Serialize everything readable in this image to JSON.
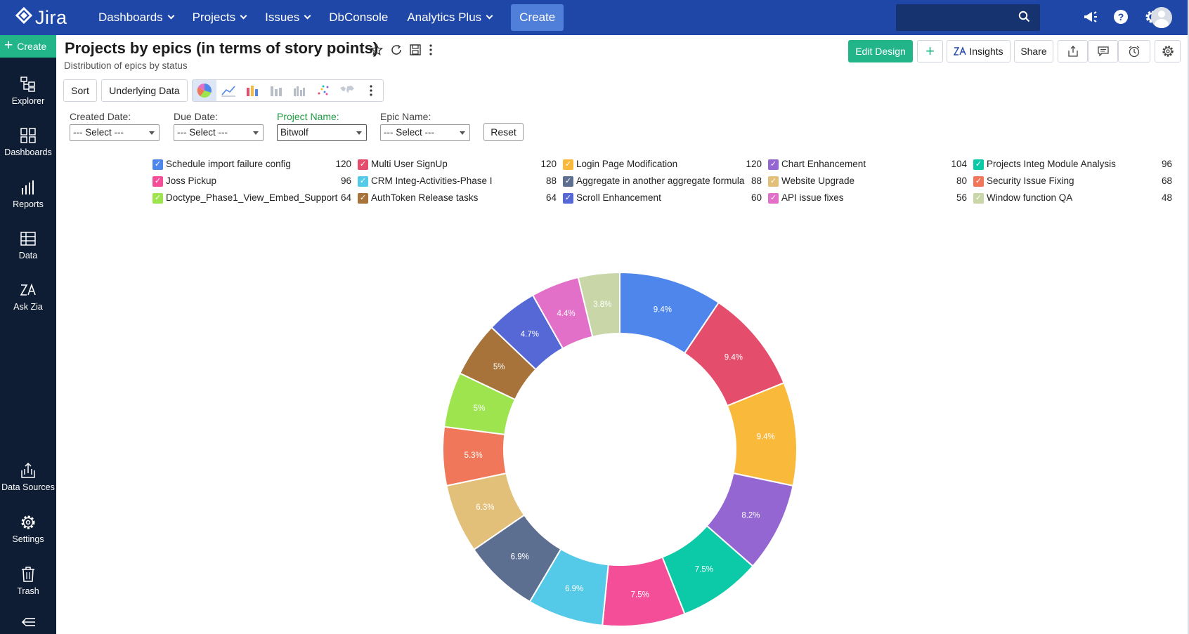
{
  "topbar": {
    "logo": "Jira",
    "nav": [
      {
        "label": "Dashboards",
        "dropdown": true
      },
      {
        "label": "Projects",
        "dropdown": true
      },
      {
        "label": "Issues",
        "dropdown": true
      },
      {
        "label": "DbConsole",
        "dropdown": false
      },
      {
        "label": "Analytics Plus",
        "dropdown": true
      }
    ],
    "create": "Create",
    "icons": [
      "search-icon",
      "megaphone-icon",
      "help-icon",
      "gear-icon",
      "avatar"
    ]
  },
  "sidebar": {
    "create": "Create",
    "items": [
      {
        "label": "Explorer",
        "icon": "explorer-icon"
      },
      {
        "label": "Dashboards",
        "icon": "dashboards-icon"
      },
      {
        "label": "Reports",
        "icon": "reports-icon"
      },
      {
        "label": "Data",
        "icon": "data-icon"
      },
      {
        "label": "Ask Zia",
        "icon": "zia-icon"
      },
      {
        "label": "Data Sources",
        "icon": "data-sources-icon"
      },
      {
        "label": "Settings",
        "icon": "settings-icon"
      },
      {
        "label": "Trash",
        "icon": "trash-icon"
      }
    ]
  },
  "header": {
    "title": "Projects by epics (in terms of story points)",
    "subtitle": "Distribution of epics by status",
    "edit_design": "Edit Design",
    "insights": "Insights",
    "share": "Share"
  },
  "toolbar": {
    "sort": "Sort",
    "underlying_data": "Underlying Data"
  },
  "filters": {
    "created_date": {
      "label": "Created Date:",
      "value": "--- Select ---"
    },
    "due_date": {
      "label": "Due Date:",
      "value": "--- Select ---"
    },
    "project_name": {
      "label": "Project Name:",
      "value": "Bitwolf"
    },
    "epic_name": {
      "label": "Epic Name:",
      "value": "--- Select ---"
    },
    "reset": "Reset"
  },
  "colors": {
    "accent_green": "#22b58a",
    "topbar_blue": "#1e47a8",
    "sidebar_dark": "#0e1d33",
    "project_label_green": "#1d9a40"
  },
  "chart_data": {
    "type": "pie",
    "subtype": "donut",
    "legend_position": "top",
    "series": [
      {
        "name": "Schedule import failure config",
        "value": 120,
        "label": "9.4%",
        "color": "#4e86ec"
      },
      {
        "name": "Multi User SignUp",
        "value": 120,
        "label": "9.4%",
        "color": "#e44d6c"
      },
      {
        "name": "Login Page Modification",
        "value": 120,
        "label": "9.4%",
        "color": "#f9b93b"
      },
      {
        "name": "Chart Enhancement",
        "value": 104,
        "label": "8.2%",
        "color": "#9466d1"
      },
      {
        "name": "Projects Integ Module Analysis",
        "value": 96,
        "label": "7.5%",
        "color": "#0cc9a8"
      },
      {
        "name": "Joss Pickup",
        "value": 96,
        "label": "7.5%",
        "color": "#f54e99"
      },
      {
        "name": "CRM Integ-Activities-Phase I",
        "value": 88,
        "label": "6.9%",
        "color": "#55c9e8"
      },
      {
        "name": "Aggregate in another aggregate formula",
        "value": 88,
        "label": "6.9%",
        "color": "#5d6f91"
      },
      {
        "name": "Website Upgrade",
        "value": 80,
        "label": "6.3%",
        "color": "#e3c07a"
      },
      {
        "name": "Security Issue Fixing",
        "value": 68,
        "label": "5.3%",
        "color": "#f0775a"
      },
      {
        "name": "Doctype_Phase1_View_Embed_Support",
        "value": 64,
        "label": "5%",
        "color": "#9ee44f"
      },
      {
        "name": "AuthToken Release tasks",
        "value": 64,
        "label": "5%",
        "color": "#a8733a"
      },
      {
        "name": "Scroll Enhancement",
        "value": 60,
        "label": "4.7%",
        "color": "#5568d6"
      },
      {
        "name": "API issue fixes",
        "value": 56,
        "label": "4.4%",
        "color": "#e270c9"
      },
      {
        "name": "Window function QA",
        "value": 48,
        "label": "3.8%",
        "color": "#c8d6a8"
      }
    ]
  }
}
